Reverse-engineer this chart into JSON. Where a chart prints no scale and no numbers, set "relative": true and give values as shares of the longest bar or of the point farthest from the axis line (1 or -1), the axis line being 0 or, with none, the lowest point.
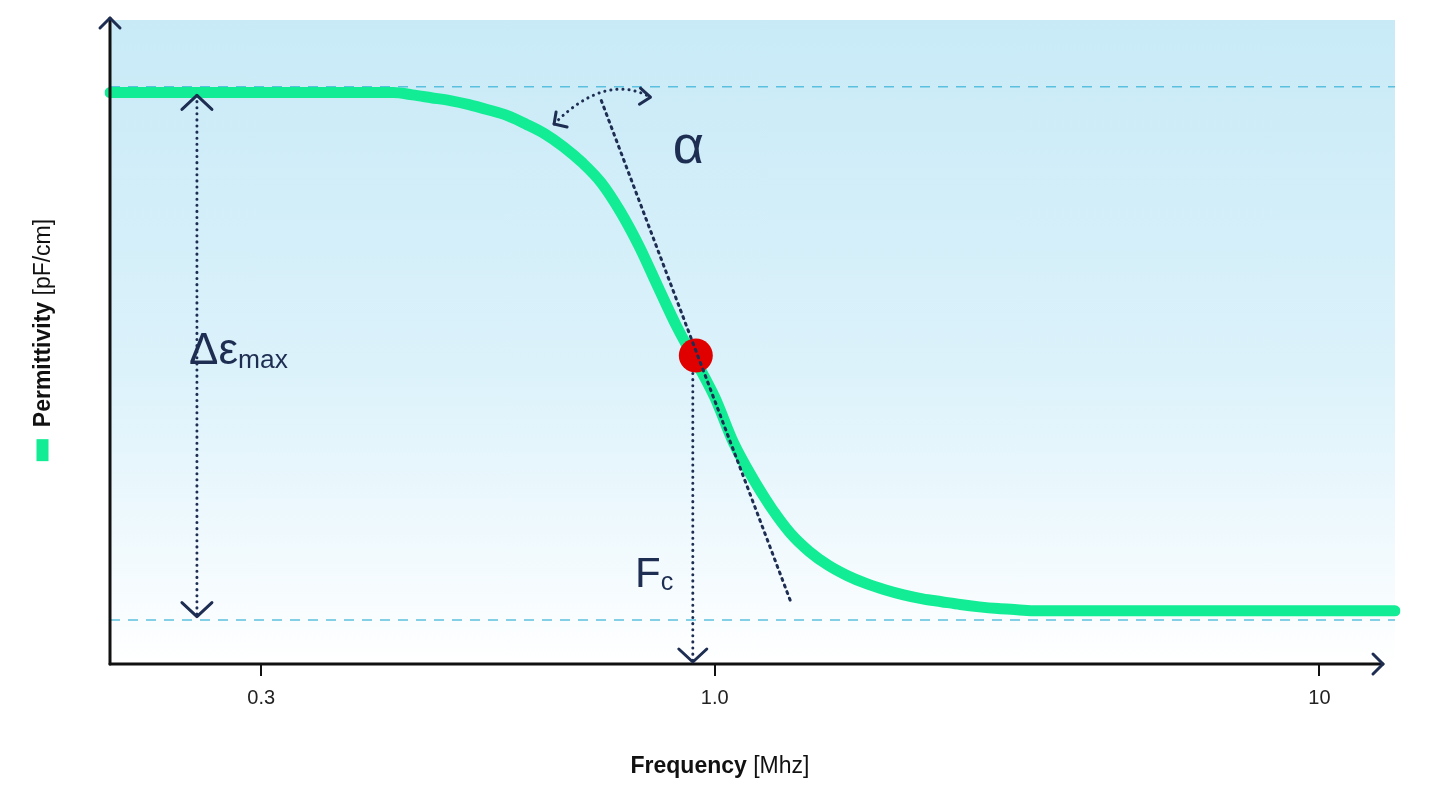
{
  "chart_data": {
    "type": "line",
    "relative": true,
    "grid": false,
    "xlabel": "Frequency [Mhz]",
    "ylabel": "Permittivity [pF/cm]",
    "annotations": [
      "α",
      "Δε$_{max}$",
      "F$_{c}$"
    ],
    "categories": [
      null,
      null,
      null,
      null,
      null,
      null,
      null,
      null,
      "0.3",
      null,
      null,
      null,
      null,
      null,
      null,
      null,
      null,
      null,
      null,
      null,
      null,
      null,
      null,
      null,
      null,
      null,
      null,
      null,
      null,
      null,
      null,
      null,
      "1.0",
      null,
      null,
      null,
      null,
      null,
      null,
      null,
      null,
      null,
      null,
      null,
      null,
      null,
      null,
      null,
      null,
      null,
      null,
      null,
      null,
      null,
      null,
      null,
      null,
      null,
      null,
      null,
      null,
      null,
      null,
      null,
      "10",
      null,
      null,
      null,
      null
    ],
    "series": [
      {
        "type": "line",
        "color": "#12ec94",
        "marker": "none",
        "line_style": "solid",
        "values": [
          1,
          1,
          1,
          1,
          1,
          1,
          1,
          1,
          1,
          1,
          1,
          1,
          1,
          1,
          1,
          1,
          0.996,
          0.991,
          0.986,
          0.979,
          0.97,
          0.96,
          0.945,
          0.928,
          0.905,
          0.877,
          0.842,
          0.792,
          0.731,
          0.66,
          0.59,
          null,
          0.467,
          0.387,
          0.326,
          0.273,
          0.229,
          0.197,
          0.173,
          0.155,
          0.141,
          0.13,
          0.121,
          0.114,
          0.109,
          0.104,
          0.1,
          0.097,
          0.095,
          0.093,
          0.093,
          0.093,
          0.093,
          0.093,
          0.093,
          0.093,
          0.093,
          0.093,
          0.093,
          0.093,
          0.093,
          0.093,
          0.093,
          0.093,
          0.093,
          0.093,
          0.093,
          0.093,
          0.093
        ]
      },
      {
        "type": "line",
        "color": "#1e2d52",
        "marker": "none",
        "line_style": "dotted",
        "values": [
          null,
          null,
          null,
          null,
          null,
          null,
          null,
          null,
          null,
          null,
          null,
          null,
          null,
          null,
          null,
          null,
          null,
          null,
          null,
          null,
          null,
          null,
          null,
          null,
          null,
          null,
          0.986,
          null,
          null,
          null,
          null,
          null,
          null,
          null,
          null,
          null,
          0.111,
          null,
          null,
          null,
          null,
          null,
          null,
          null,
          null,
          null,
          null,
          null,
          null,
          null,
          null,
          null,
          null,
          null,
          null,
          null,
          null,
          null,
          null,
          null,
          null,
          null,
          null,
          null,
          null,
          null,
          null,
          null,
          null
        ]
      },
      {
        "type": "scatter",
        "color": "#e00000",
        "marker": "circle",
        "values": [
          null,
          null,
          null,
          null,
          null,
          null,
          null,
          null,
          null,
          null,
          null,
          null,
          null,
          null,
          null,
          null,
          null,
          null,
          null,
          null,
          null,
          null,
          null,
          null,
          null,
          null,
          null,
          null,
          null,
          null,
          null,
          0.54,
          null,
          null,
          null,
          null,
          null,
          null,
          null,
          null,
          null,
          null,
          null,
          null,
          null,
          null,
          null,
          null,
          null,
          null,
          null,
          null,
          null,
          null,
          null,
          null,
          null,
          null,
          null,
          null,
          null,
          null,
          null,
          null,
          null,
          null,
          null,
          null,
          null
        ]
      }
    ],
    "ref_lines": [
      {
        "axis": "y",
        "value": 1.01,
        "color": "#5bc0de",
        "line_style": "dashed"
      },
      {
        "axis": "y",
        "value": 0.077,
        "color": "#5bc0de",
        "line_style": "dashed"
      }
    ]
  }
}
